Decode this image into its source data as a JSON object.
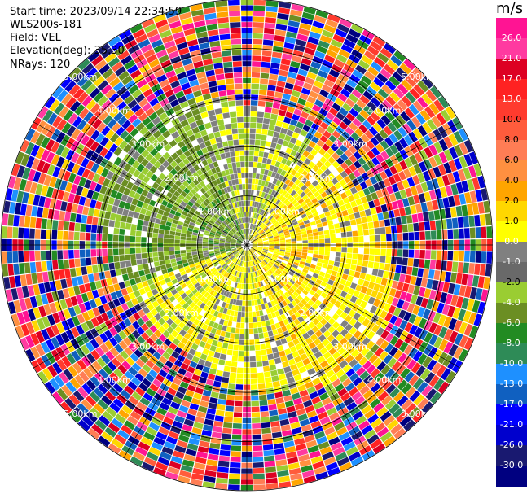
{
  "header": {
    "start_time": "Start time: 2023/09/14 22:34:59",
    "instrument": "WLS200s-181",
    "field": "Field: VEL",
    "elevation": "Elevation(deg): 35.30",
    "nrays": "NRays: 120"
  },
  "colorbar": {
    "unit": "m/s",
    "ticks": [
      "26.0",
      "21.0",
      "17.0",
      "13.0",
      "10.0",
      "8.0",
      "6.0",
      "4.0",
      "2.0",
      "1.0",
      "0.0",
      "-1.0",
      "-2.0",
      "-4.0",
      "-6.0",
      "-8.0",
      "-10.0",
      "-13.0",
      "-17.0",
      "-21.0",
      "-26.0",
      "-30.0"
    ],
    "colors": [
      "#ff1493",
      "#ff3aa0",
      "#dd0022",
      "#ff2222",
      "#ff3b2e",
      "#ff5c3c",
      "#ff7d55",
      "#ff9040",
      "#ffa500",
      "#ffd700",
      "#ffff00",
      "#808080",
      "#696969",
      "#9acd32",
      "#6b8e23",
      "#228b22",
      "#2e8b57",
      "#1e90ff",
      "#1060c0",
      "#0000ff",
      "#0000cd",
      "#191970",
      "#000080"
    ]
  },
  "chart_data": {
    "type": "heatmap",
    "projection": "polar",
    "field": "VEL",
    "nrays": 120,
    "range_ring_labels_km": [
      1,
      2,
      3,
      4,
      5
    ],
    "range_ring_label_text": [
      "1.00km",
      "2.00km",
      "3.00km",
      "4.00km",
      "5.00km"
    ],
    "color_scale_ms": [
      26.0,
      21.0,
      17.0,
      13.0,
      10.0,
      8.0,
      6.0,
      4.0,
      2.0,
      1.0,
      0.0,
      -1.0,
      -2.0,
      -4.0,
      -6.0,
      -8.0,
      -10.0,
      -13.0,
      -17.0,
      -21.0,
      -26.0,
      -30.0
    ],
    "max_range_km": 5.0
  }
}
